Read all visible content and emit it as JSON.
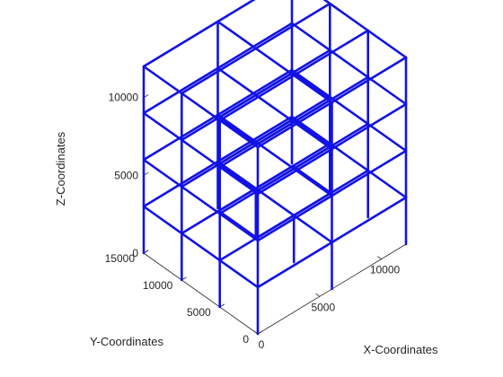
{
  "chart_data": {
    "type": "3d-wireframe",
    "title": "",
    "xlabel": "X-Coordinates",
    "ylabel": "Y-Coordinates",
    "zlabel": "Z-Coordinates",
    "xlim": [
      0,
      12000
    ],
    "ylim": [
      0,
      15000
    ],
    "zlim": [
      0,
      12000
    ],
    "xticks": [
      {
        "value": 0,
        "label": "0"
      },
      {
        "value": 5000,
        "label": "5000"
      },
      {
        "value": 10000,
        "label": "10000"
      }
    ],
    "yticks": [
      {
        "value": 0,
        "label": "0"
      },
      {
        "value": 5000,
        "label": "5000"
      },
      {
        "value": 10000,
        "label": "10000"
      },
      {
        "value": 15000,
        "label": "15000"
      }
    ],
    "zticks": [
      {
        "value": 0,
        "label": "0"
      },
      {
        "value": 5000,
        "label": "5000"
      },
      {
        "value": 10000,
        "label": "10000"
      }
    ],
    "grid": false,
    "line_color": "#1212e6",
    "axis_color": "#262626",
    "x_grid": [
      0,
      6000,
      12000
    ],
    "y_grid": [
      0,
      5000,
      10000,
      15000
    ],
    "floor_levels": [
      3000,
      6000,
      9000,
      12000
    ],
    "courtyard": {
      "x": [
        3000,
        9000
      ],
      "y": [
        5000,
        10000
      ]
    }
  }
}
